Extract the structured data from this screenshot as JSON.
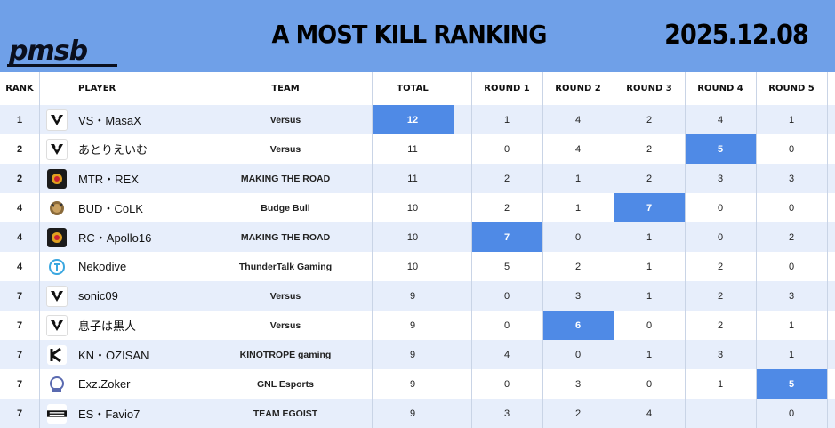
{
  "header": {
    "logo_text": "pmsb",
    "title": "A  MOST KILL RANKING",
    "date": "2025.12.08",
    "bg_color": "#6fa0e8"
  },
  "columns": {
    "rank": "RANK",
    "player": "PLAYER",
    "team": "TEAM",
    "total": "TOTAL",
    "r1": "ROUND 1",
    "r2": "ROUND 2",
    "r3": "ROUND 3",
    "r4": "ROUND 4",
    "r5": "ROUND 5"
  },
  "highlight_color": "#4f8ae6",
  "rows": [
    {
      "rank": "1",
      "icon": "versus-logo-icon",
      "player": "VS・MasaX",
      "team": "Versus",
      "total": "12",
      "r1": "1",
      "r2": "4",
      "r3": "2",
      "r4": "4",
      "r5": "1",
      "hl": [
        "total"
      ]
    },
    {
      "rank": "2",
      "icon": "versus-logo-icon",
      "player": "あとりえいむ",
      "team": "Versus",
      "total": "11",
      "r1": "0",
      "r2": "4",
      "r3": "2",
      "r4": "5",
      "r5": "0",
      "hl": [
        "r4"
      ]
    },
    {
      "rank": "2",
      "icon": "mtr-logo-icon",
      "player": "MTR・REX",
      "team": "MAKING THE ROAD",
      "total": "11",
      "r1": "2",
      "r2": "1",
      "r3": "2",
      "r4": "3",
      "r5": "3",
      "hl": []
    },
    {
      "rank": "4",
      "icon": "budge-bull-logo-icon",
      "player": "BUD・CoLK",
      "team": "Budge Bull",
      "total": "10",
      "r1": "2",
      "r2": "1",
      "r3": "7",
      "r4": "0",
      "r5": "0",
      "hl": [
        "r3"
      ]
    },
    {
      "rank": "4",
      "icon": "mtr-logo-icon",
      "player": "RC・Apollo16",
      "team": "MAKING THE ROAD",
      "total": "10",
      "r1": "7",
      "r2": "0",
      "r3": "1",
      "r4": "0",
      "r5": "2",
      "hl": [
        "r1"
      ]
    },
    {
      "rank": "4",
      "icon": "thundertalk-logo-icon",
      "player": "Nekodive",
      "team": "ThunderTalk Gaming",
      "total": "10",
      "r1": "5",
      "r2": "2",
      "r3": "1",
      "r4": "2",
      "r5": "0",
      "hl": []
    },
    {
      "rank": "7",
      "icon": "versus-logo-icon",
      "player": "sonic09",
      "team": "Versus",
      "total": "9",
      "r1": "0",
      "r2": "3",
      "r3": "1",
      "r4": "2",
      "r5": "3",
      "hl": []
    },
    {
      "rank": "7",
      "icon": "versus-logo-icon",
      "player": "息子は黒人",
      "team": "Versus",
      "total": "9",
      "r1": "0",
      "r2": "6",
      "r3": "0",
      "r4": "2",
      "r5": "1",
      "hl": [
        "r2"
      ]
    },
    {
      "rank": "7",
      "icon": "kinotrope-logo-icon",
      "player": "KN・OZISAN",
      "team": "KINOTROPE gaming",
      "total": "9",
      "r1": "4",
      "r2": "0",
      "r3": "1",
      "r4": "3",
      "r5": "1",
      "hl": []
    },
    {
      "rank": "7",
      "icon": "gnl-logo-icon",
      "player": "Exz.Zoker",
      "team": "GNL Esports",
      "total": "9",
      "r1": "0",
      "r2": "3",
      "r3": "0",
      "r4": "1",
      "r5": "5",
      "hl": [
        "r5"
      ]
    },
    {
      "rank": "7",
      "icon": "egoist-logo-icon",
      "player": "ES・Favio7",
      "team": "TEAM EGOIST",
      "total": "9",
      "r1": "3",
      "r2": "2",
      "r3": "4",
      "r4": "",
      "r5": "0",
      "hl": []
    }
  ]
}
